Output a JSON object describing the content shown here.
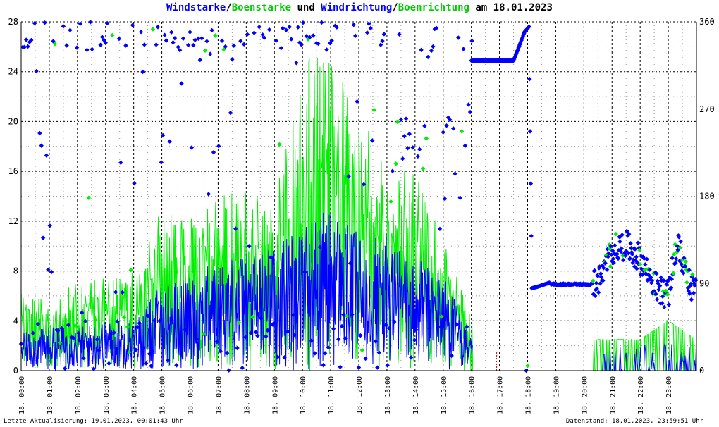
{
  "chart_data": {
    "type": "line",
    "title_parts": {
      "wind_speed": "Windstarke",
      "sep1": "/",
      "gust_speed": "Boenstarke",
      "mid": " und ",
      "wind_dir": "Windrichtung",
      "sep2": "/",
      "gust_dir": "Boenrichtung",
      "date_prefix": " am ",
      "date": "18.01.2023"
    },
    "colors": {
      "wind": "#0000ff",
      "gust": "#00ee00",
      "grid": "#000000",
      "marker_red": "#cc0000"
    },
    "left_axis": {
      "ylim": [
        0,
        28
      ],
      "ticks": [
        0,
        4,
        8,
        12,
        16,
        20,
        24,
        28
      ]
    },
    "right_axis": {
      "ylim": [
        0,
        360
      ],
      "ticks": [
        0,
        90,
        180,
        270,
        360
      ]
    },
    "x_ticks": [
      "18. 00:00",
      "18. 01:00",
      "18. 02:00",
      "18. 03:00",
      "18. 04:00",
      "18. 05:00",
      "18. 06:00",
      "18. 07:00",
      "18. 08:00",
      "18. 09:00",
      "18. 10:00",
      "18. 11:00",
      "18. 12:00",
      "18. 13:00",
      "18. 14:00",
      "18. 15:00",
      "18. 16:00",
      "18. 17:00",
      "18. 18:00",
      "18. 19:00",
      "18. 20:00",
      "18. 21:00",
      "18. 22:00",
      "18. 23:00"
    ],
    "hours": [
      0,
      1,
      2,
      3,
      4,
      5,
      6,
      7,
      8,
      9,
      10,
      11,
      12,
      13,
      14,
      15,
      16,
      17,
      18,
      19,
      20,
      21,
      22,
      23,
      24
    ],
    "wind_speed_hourly_max": [
      3,
      3.5,
      3.5,
      4,
      4,
      7,
      7.5,
      9,
      9.5,
      10,
      12,
      13,
      11,
      11,
      9,
      8,
      2.5,
      0,
      0,
      0,
      0,
      2,
      2,
      2.5,
      2
    ],
    "gust_speed_hourly_max": [
      7.5,
      5,
      7.5,
      7.5,
      8,
      13,
      12.5,
      14,
      14.5,
      13.5,
      25.5,
      25.5,
      21,
      17,
      16,
      10.5,
      4.5,
      0,
      0,
      0,
      2.5,
      2.5,
      2.5,
      4,
      2.5
    ],
    "wind_dir_trace": [
      [
        16.0,
        320
      ],
      [
        17.5,
        320
      ],
      [
        17.9,
        350
      ],
      [
        18.05,
        355
      ],
      [
        18.15,
        85
      ],
      [
        18.4,
        87
      ],
      [
        18.8,
        91
      ],
      [
        20.3,
        89
      ],
      [
        20.6,
        95
      ],
      [
        21.0,
        125
      ],
      [
        21.5,
        130
      ],
      [
        22.0,
        115
      ],
      [
        22.3,
        100
      ],
      [
        22.6,
        85
      ],
      [
        23.0,
        78
      ],
      [
        23.3,
        130
      ],
      [
        23.5,
        115
      ],
      [
        23.8,
        88
      ],
      [
        24.0,
        80
      ]
    ],
    "footer_left": "Letzte Aktualisierung: 19.01.2023, 00:01:43 Uhr",
    "footer_right": "Datenstand: 18.01.2023, 23:59:51 Uhr"
  }
}
